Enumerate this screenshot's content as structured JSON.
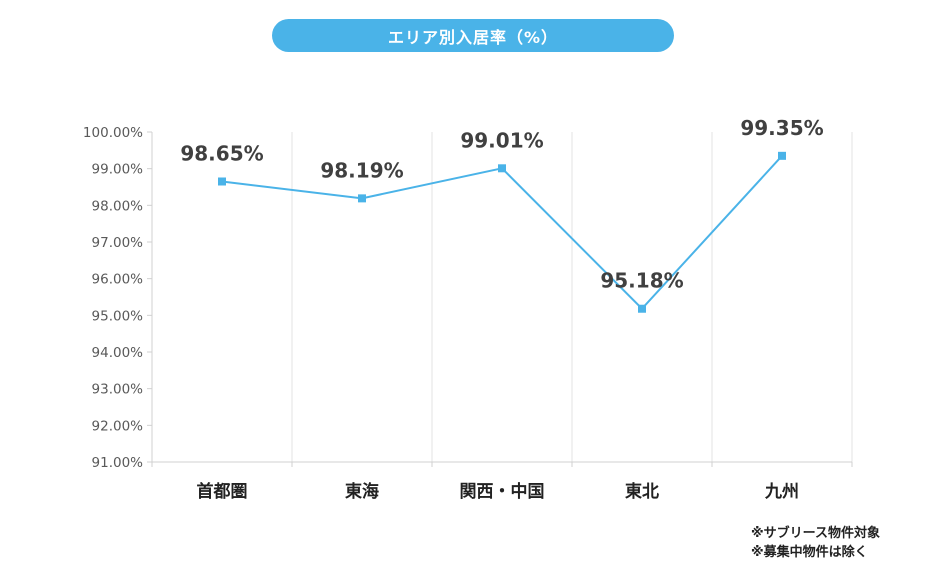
{
  "colors": {
    "accent": "#4ab3e8",
    "line": "#4ab3e8",
    "grid": "#e3e3e3",
    "axis_text": "#595959",
    "label_text": "#404040"
  },
  "title": "エリア別入居率（%）",
  "notes": [
    "※サブリース物件対象",
    "※募集中物件は除く"
  ],
  "chart_data": {
    "type": "line",
    "title": "エリア別入居率（%）",
    "categories": [
      "首都圏",
      "東海",
      "関西・中国",
      "東北",
      "九州"
    ],
    "series": [
      {
        "values": [
          98.65,
          98.19,
          99.01,
          95.18,
          99.35
        ],
        "labels": [
          "98.65%",
          "98.19%",
          "99.01%",
          "95.18%",
          "99.35%"
        ]
      }
    ],
    "y_ticks": [
      "100.00%",
      "99.00%",
      "98.00%",
      "97.00%",
      "96.00%",
      "95.00%",
      "94.00%",
      "93.00%",
      "92.00%",
      "91.00%"
    ],
    "ylim": [
      91,
      100
    ],
    "grid": "vertical",
    "legend": "none",
    "marker": "square"
  }
}
